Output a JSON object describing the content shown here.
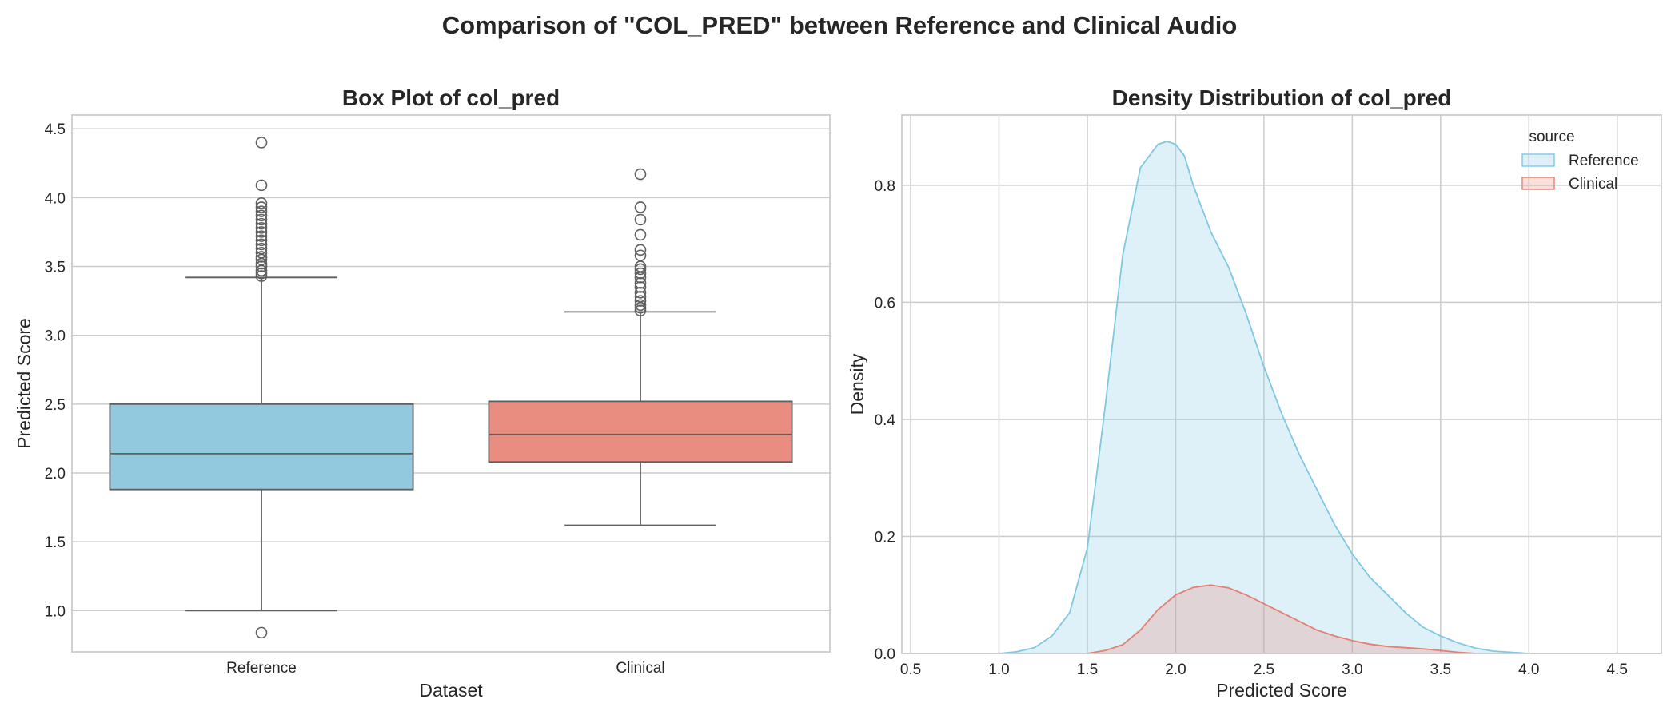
{
  "title": "Comparison of \"COL_PRED\" between Reference and Clinical Audio",
  "chart_data": [
    {
      "type": "box",
      "title": "Box Plot of col_pred",
      "xlabel": "Dataset",
      "ylabel": "Predicted Score",
      "categories": [
        "Reference",
        "Clinical"
      ],
      "colors": [
        "#92c9df",
        "#e88d80"
      ],
      "ylim": [
        0.7,
        4.6
      ],
      "yticks": [
        "1.0",
        "1.5",
        "2.0",
        "2.5",
        "3.0",
        "3.5",
        "4.0",
        "4.5"
      ],
      "boxes": [
        {
          "name": "Reference",
          "q1": 1.88,
          "median": 2.14,
          "q3": 2.5,
          "whisker_low": 1.0,
          "whisker_high": 3.42,
          "outliers": [
            0.84,
            3.43,
            3.45,
            3.47,
            3.5,
            3.52,
            3.55,
            3.57,
            3.6,
            3.63,
            3.66,
            3.69,
            3.72,
            3.75,
            3.78,
            3.81,
            3.84,
            3.87,
            3.9,
            3.93,
            3.96,
            4.09,
            4.4
          ]
        },
        {
          "name": "Clinical",
          "q1": 2.08,
          "median": 2.28,
          "q3": 2.52,
          "whisker_low": 1.62,
          "whisker_high": 3.17,
          "outliers": [
            3.18,
            3.2,
            3.22,
            3.25,
            3.28,
            3.31,
            3.35,
            3.38,
            3.42,
            3.45,
            3.48,
            3.5,
            3.58,
            3.62,
            3.73,
            3.84,
            3.93,
            4.17
          ]
        }
      ]
    },
    {
      "type": "area",
      "title": "Density Distribution of col_pred",
      "xlabel": "Predicted Score",
      "ylabel": "Density",
      "xlim": [
        0.45,
        4.75
      ],
      "ylim": [
        0,
        0.92
      ],
      "xticks": [
        "0.5",
        "1.0",
        "1.5",
        "2.0",
        "2.5",
        "3.0",
        "3.5",
        "4.0",
        "4.5"
      ],
      "yticks": [
        "0.0",
        "0.2",
        "0.4",
        "0.6",
        "0.8"
      ],
      "legend": {
        "title": "source",
        "position": "top-right"
      },
      "series": [
        {
          "name": "Reference",
          "color": "#7ec8e3",
          "x": [
            1.0,
            1.1,
            1.2,
            1.3,
            1.4,
            1.5,
            1.6,
            1.7,
            1.8,
            1.9,
            1.95,
            2.0,
            2.05,
            2.1,
            2.2,
            2.3,
            2.4,
            2.5,
            2.6,
            2.7,
            2.8,
            2.9,
            3.0,
            3.1,
            3.2,
            3.3,
            3.4,
            3.5,
            3.6,
            3.7,
            3.8,
            3.9,
            4.0
          ],
          "y": [
            0.0,
            0.003,
            0.01,
            0.03,
            0.07,
            0.18,
            0.42,
            0.68,
            0.83,
            0.87,
            0.875,
            0.87,
            0.85,
            0.8,
            0.72,
            0.66,
            0.58,
            0.49,
            0.41,
            0.34,
            0.28,
            0.22,
            0.17,
            0.13,
            0.1,
            0.07,
            0.045,
            0.03,
            0.018,
            0.009,
            0.004,
            0.002,
            0.0
          ]
        },
        {
          "name": "Clinical",
          "color": "#e57f73",
          "x": [
            1.5,
            1.6,
            1.7,
            1.8,
            1.9,
            2.0,
            2.1,
            2.2,
            2.3,
            2.4,
            2.5,
            2.6,
            2.7,
            2.8,
            2.9,
            3.0,
            3.1,
            3.2,
            3.3,
            3.4,
            3.5,
            3.6,
            3.7
          ],
          "y": [
            0.0,
            0.005,
            0.015,
            0.04,
            0.075,
            0.1,
            0.113,
            0.117,
            0.112,
            0.1,
            0.085,
            0.07,
            0.055,
            0.04,
            0.03,
            0.022,
            0.016,
            0.012,
            0.01,
            0.008,
            0.005,
            0.002,
            0.0
          ]
        }
      ]
    }
  ]
}
